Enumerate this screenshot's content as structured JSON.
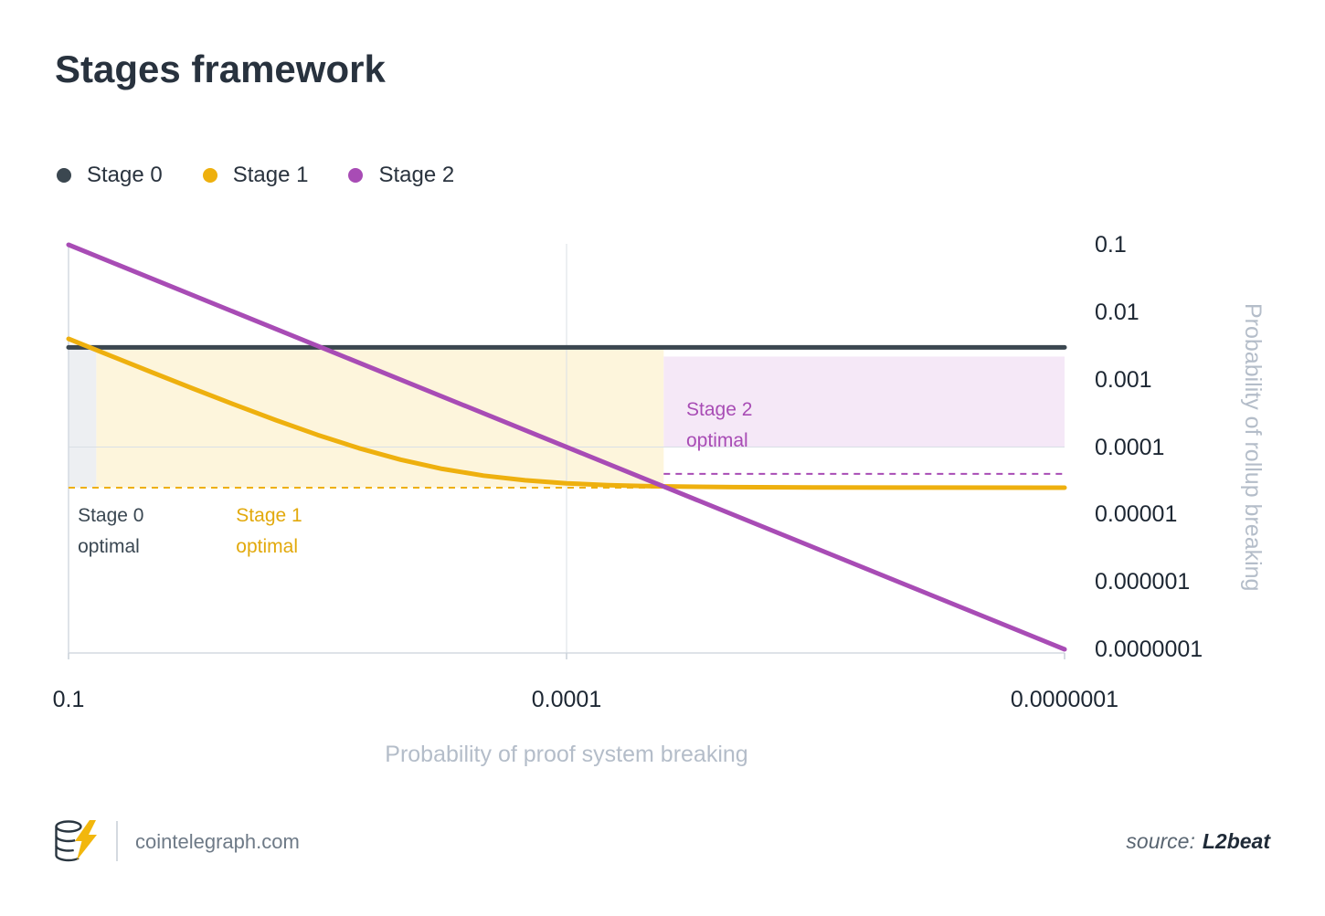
{
  "title": "Stages framework",
  "legend": [
    {
      "label": "Stage 0",
      "color": "#3b4750"
    },
    {
      "label": "Stage 1",
      "color": "#eeb00e"
    },
    {
      "label": "Stage 2",
      "color": "#a84cb5"
    }
  ],
  "chart_data": {
    "type": "line",
    "x_scale": "log",
    "y_scale": "log",
    "x_range": [
      0.1,
      1e-07
    ],
    "y_range": [
      0.1,
      1e-07
    ],
    "xlabel": "Probability of proof system breaking",
    "ylabel": "Probability of rollup breaking",
    "x_ticks": [
      {
        "value": 0.1,
        "label": "0.1"
      },
      {
        "value": 0.0001,
        "label": "0.0001"
      },
      {
        "value": 1e-07,
        "label": "0.0000001"
      }
    ],
    "y_ticks": [
      {
        "value": 0.1,
        "label": "0.1"
      },
      {
        "value": 0.01,
        "label": "0.01"
      },
      {
        "value": 0.001,
        "label": "0.001"
      },
      {
        "value": 0.0001,
        "label": "0.0001"
      },
      {
        "value": 1e-05,
        "label": "0.00001"
      },
      {
        "value": 1e-06,
        "label": "0.000001"
      },
      {
        "value": 1e-07,
        "label": "0.0000001"
      }
    ],
    "grid": {
      "x": [
        0.0001
      ],
      "y": [
        0.0001
      ]
    },
    "series": [
      {
        "name": "Stage 0",
        "color": "#3b4750",
        "points": [
          [
            0.1,
            0.003
          ],
          [
            1e-07,
            0.003
          ]
        ]
      },
      {
        "name": "Stage 1",
        "color": "#eeb00e",
        "points": [
          [
            0.1,
            0.004025
          ],
          [
            0.05623,
            0.002274
          ],
          [
            0.03162,
            0.00129
          ],
          [
            0.01778,
            0.0007363
          ],
          [
            0.01,
            0.000425
          ],
          [
            0.005623,
            0.0002499
          ],
          [
            0.003162,
            0.0001515
          ],
          [
            0.001778,
            9.613e-05
          ],
          [
            0.001,
            6.5e-05
          ],
          [
            0.0005623,
            4.749e-05
          ],
          [
            0.0003162,
            3.765e-05
          ],
          [
            0.0001778,
            3.211e-05
          ],
          [
            0.0001,
            2.9e-05
          ],
          [
            5.623e-05,
            2.725e-05
          ],
          [
            3.162e-05,
            2.626e-05
          ],
          [
            1e-05,
            2.54e-05
          ],
          [
            3.162e-06,
            2.513e-05
          ],
          [
            1e-06,
            2.504e-05
          ],
          [
            1e-07,
            2.5e-05
          ]
        ]
      },
      {
        "name": "Stage 2",
        "color": "#a84cb5",
        "points": [
          [
            0.1,
            0.1
          ],
          [
            1e-07,
            1e-07
          ]
        ]
      }
    ],
    "regions": [
      {
        "name": "stage-0-optimal",
        "x_from": 0.1,
        "x_to": 0.068,
        "y_top": 0.003,
        "y_bottom": 2.5e-05,
        "fill": "#edeff2"
      },
      {
        "name": "stage-1-optimal",
        "x_from": 0.068,
        "x_to": 2.6e-05,
        "y_top": 0.003,
        "y_bottom": 2.5e-05,
        "fill": "#fdf5dc"
      },
      {
        "name": "stage-2-optimal",
        "x_from": 2.6e-05,
        "x_to": 1e-07,
        "y_top": 0.0022,
        "y_bottom": 0.0001,
        "fill": "#f5e8f7"
      }
    ],
    "reference_lines": [
      {
        "name": "stage-1-dashed",
        "y": 2.5e-05,
        "x_from": 0.1,
        "x_to": 2.6e-05,
        "color": "#eeb00e"
      },
      {
        "name": "stage-2-dashed",
        "y": 4e-05,
        "x_from": 2.6e-05,
        "x_to": 1e-07,
        "color": "#a84cb5"
      }
    ],
    "annotations": [
      {
        "name": "stage-0-optimal",
        "lines": [
          "Stage 0",
          "optimal"
        ],
        "color": "#3a4752",
        "x": 0.088,
        "y": 1.6e-05
      },
      {
        "name": "stage-1-optimal",
        "lines": [
          "Stage 1",
          "optimal"
        ],
        "color": "#e2a90c",
        "x": 0.0098,
        "y": 1.6e-05
      },
      {
        "name": "stage-2-optimal",
        "lines": [
          "Stage 2",
          "optimal"
        ],
        "color": "#a84cb5",
        "x": 1.9e-05,
        "y": 0.0006
      }
    ]
  },
  "footer": {
    "brand": "cointelegraph.com",
    "source_label": "source:",
    "source_value": "L2beat"
  }
}
